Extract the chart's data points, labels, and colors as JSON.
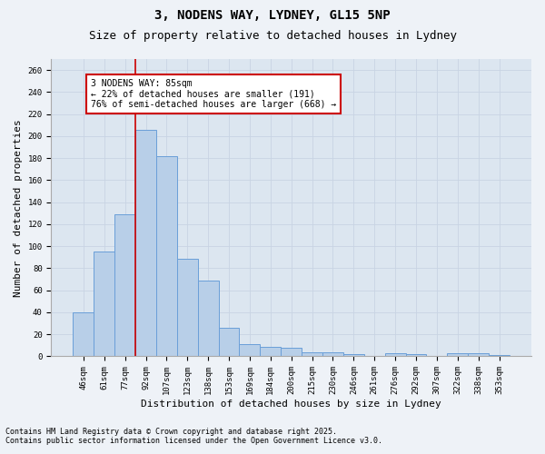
{
  "title1": "3, NODENS WAY, LYDNEY, GL15 5NP",
  "title2": "Size of property relative to detached houses in Lydney",
  "xlabel": "Distribution of detached houses by size in Lydney",
  "ylabel": "Number of detached properties",
  "categories": [
    "46sqm",
    "61sqm",
    "77sqm",
    "92sqm",
    "107sqm",
    "123sqm",
    "138sqm",
    "153sqm",
    "169sqm",
    "184sqm",
    "200sqm",
    "215sqm",
    "230sqm",
    "246sqm",
    "261sqm",
    "276sqm",
    "292sqm",
    "307sqm",
    "322sqm",
    "338sqm",
    "353sqm"
  ],
  "values": [
    40,
    95,
    129,
    206,
    182,
    89,
    69,
    26,
    11,
    9,
    8,
    4,
    4,
    2,
    0,
    3,
    2,
    0,
    3,
    3,
    1
  ],
  "bar_color": "#b8cfe8",
  "bar_edge_color": "#6a9fd8",
  "bar_edge_width": 0.7,
  "redline_x": 2.5,
  "annotation_line1": "3 NODENS WAY: 85sqm",
  "annotation_line2": "← 22% of detached houses are smaller (191)",
  "annotation_line3": "76% of semi-detached houses are larger (668) →",
  "annotation_box_color": "#ffffff",
  "annotation_box_edge": "#cc0000",
  "redline_color": "#cc0000",
  "grid_color": "#c8d4e3",
  "bg_color": "#dce6f0",
  "fig_bg_color": "#eef2f7",
  "ylim": [
    0,
    270
  ],
  "yticks": [
    0,
    20,
    40,
    60,
    80,
    100,
    120,
    140,
    160,
    180,
    200,
    220,
    240,
    260
  ],
  "footnote1": "Contains HM Land Registry data © Crown copyright and database right 2025.",
  "footnote2": "Contains public sector information licensed under the Open Government Licence v3.0.",
  "title_fontsize": 10,
  "subtitle_fontsize": 9,
  "tick_fontsize": 6.5,
  "label_fontsize": 8,
  "footnote_fontsize": 6,
  "annot_fontsize": 7
}
